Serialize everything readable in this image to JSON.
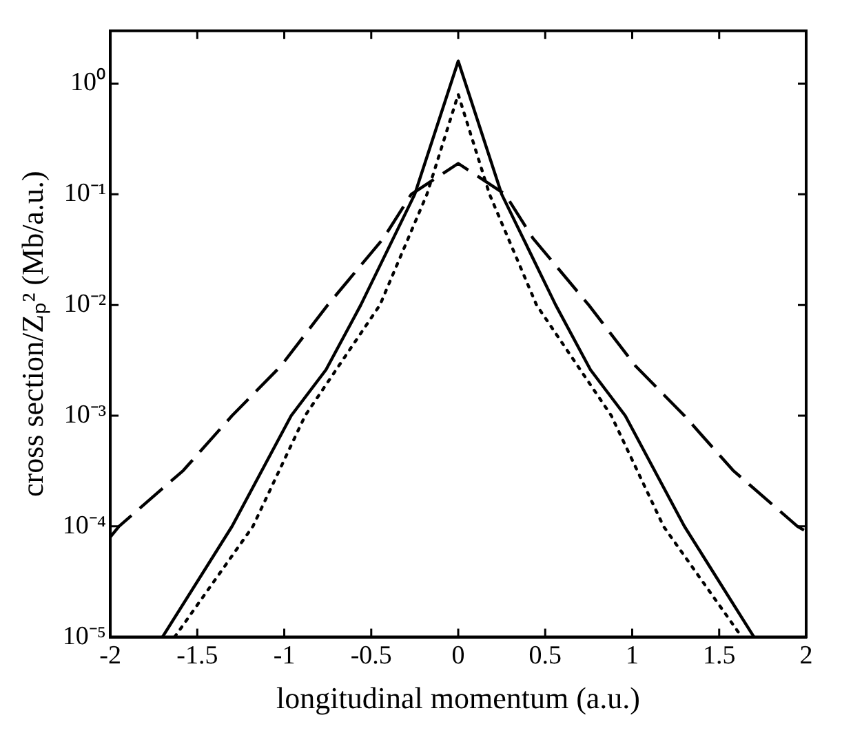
{
  "chart_data": {
    "type": "line",
    "xlabel": "longitudinal momentum (a.u.)",
    "ylabel": "cross section/Zₚ² (Mb/a.u.)",
    "xlim": [
      -2,
      2
    ],
    "xticks": [
      -2,
      -1.5,
      -1,
      -0.5,
      0,
      0.5,
      1,
      1.5,
      2
    ],
    "ylim": [
      1e-05,
      3
    ],
    "log": "y",
    "yticks": [
      {
        "value": 1e-05,
        "label": "10⁻⁵"
      },
      {
        "value": 0.0001,
        "label": "10⁻⁴"
      },
      {
        "value": 0.001,
        "label": "10⁻³"
      },
      {
        "value": 0.01,
        "label": "10⁻²"
      },
      {
        "value": 0.1,
        "label": "10⁻¹"
      },
      {
        "value": 1,
        "label": "10⁰"
      }
    ],
    "grid": false,
    "legend": false,
    "series": [
      {
        "color": "#000000",
        "line_style": "solid",
        "x": [
          -1.7,
          -1.3,
          -0.96,
          -0.76,
          -0.56,
          -0.25,
          0,
          0.25,
          0.56,
          0.76,
          0.96,
          1.3,
          1.7
        ],
        "values": [
          1e-05,
          0.0001,
          0.001,
          0.0026,
          0.01,
          0.1,
          1.6,
          0.1,
          0.01,
          0.0026,
          0.001,
          0.0001,
          1e-05
        ]
      },
      {
        "color": "#000000",
        "line_style": "dotted",
        "x": [
          -1.63,
          -1.18,
          -0.88,
          -0.45,
          -0.18,
          0,
          0.18,
          0.45,
          0.88,
          1.18,
          1.63
        ],
        "values": [
          1e-05,
          0.0001,
          0.001,
          0.01,
          0.1,
          0.8,
          0.1,
          0.01,
          0.001,
          0.0001,
          1e-05
        ]
      },
      {
        "color": "#000000",
        "line_style": "dashed",
        "x": [
          -2,
          -1.95,
          -1.58,
          -1.3,
          -1.02,
          -0.75,
          -0.43,
          -0.27,
          0,
          0.27,
          0.43,
          0.75,
          1.02,
          1.3,
          1.58,
          1.95,
          2
        ],
        "values": [
          8e-05,
          0.0001,
          0.00032,
          0.001,
          0.0028,
          0.01,
          0.04,
          0.1,
          0.19,
          0.1,
          0.04,
          0.01,
          0.0028,
          0.001,
          0.00032,
          0.0001,
          9e-05
        ]
      }
    ]
  }
}
